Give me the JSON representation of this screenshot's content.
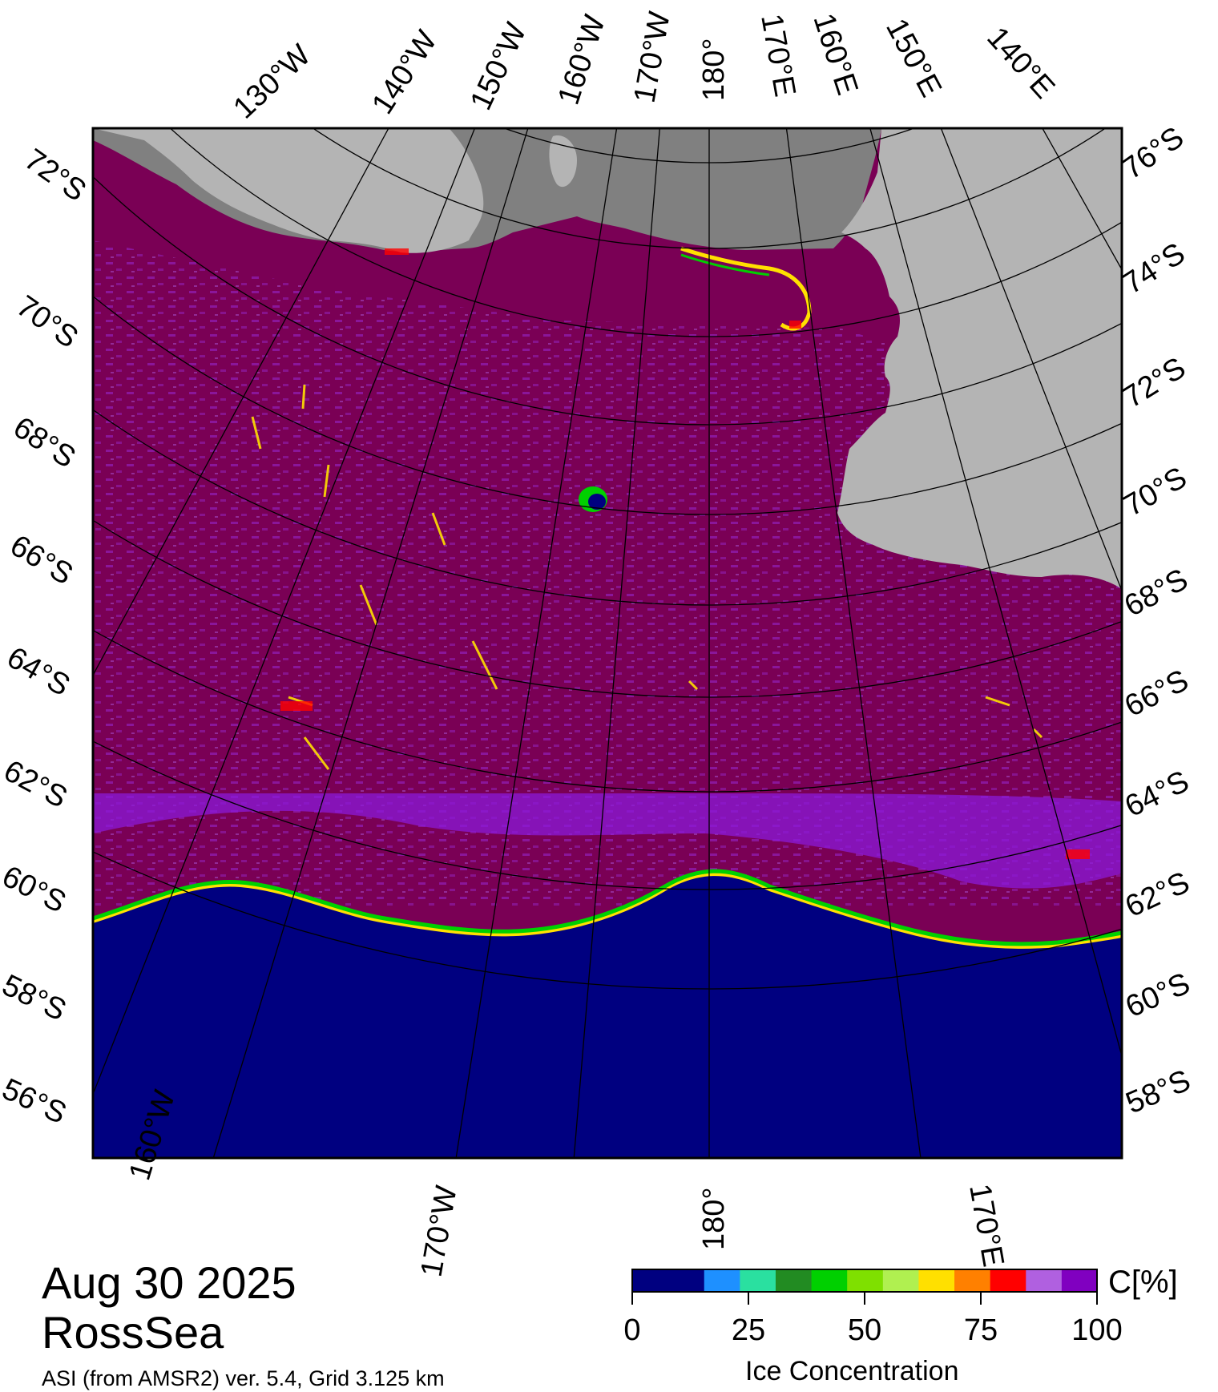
{
  "header": {
    "date": "Aug 30 2025",
    "region": "RossSea",
    "subtitle": "ASI (from AMSR2) ver. 5.4,  Grid 3.125 km"
  },
  "map": {
    "top_longitudes": [
      "130°W",
      "140°W",
      "150°W",
      "160°W",
      "170°W",
      "180°",
      "170°E",
      "160°E",
      "150°E",
      "140°E"
    ],
    "bottom_longitudes": [
      "160°W",
      "170°W",
      "180°",
      "170°E"
    ],
    "left_latitudes": [
      "72°S",
      "70°S",
      "68°S",
      "66°S",
      "64°S",
      "62°S",
      "60°S",
      "58°S",
      "56°S"
    ],
    "right_latitudes": [
      "76°S",
      "74°S",
      "72°S",
      "70°S",
      "68°S",
      "66°S",
      "64°S",
      "62°S",
      "60°S",
      "58°S"
    ],
    "colors": {
      "open_water": "#000080",
      "high_ice": "#7a0055",
      "ice_purple": "#8b1ad8",
      "land": "#b4b4b4",
      "ice_shelf": "#808080"
    }
  },
  "colorbar": {
    "title": "Ice Concentration",
    "unit": "C[%]",
    "ticks": [
      "0",
      "25",
      "50",
      "75",
      "100"
    ],
    "colors": [
      "#000080",
      "#000080",
      "#1e90ff",
      "#2ae0a0",
      "#228b22",
      "#00d000",
      "#7fe000",
      "#b0f050",
      "#ffe000",
      "#ff8000",
      "#ff0000",
      "#b060e0",
      "#8000c0"
    ]
  }
}
